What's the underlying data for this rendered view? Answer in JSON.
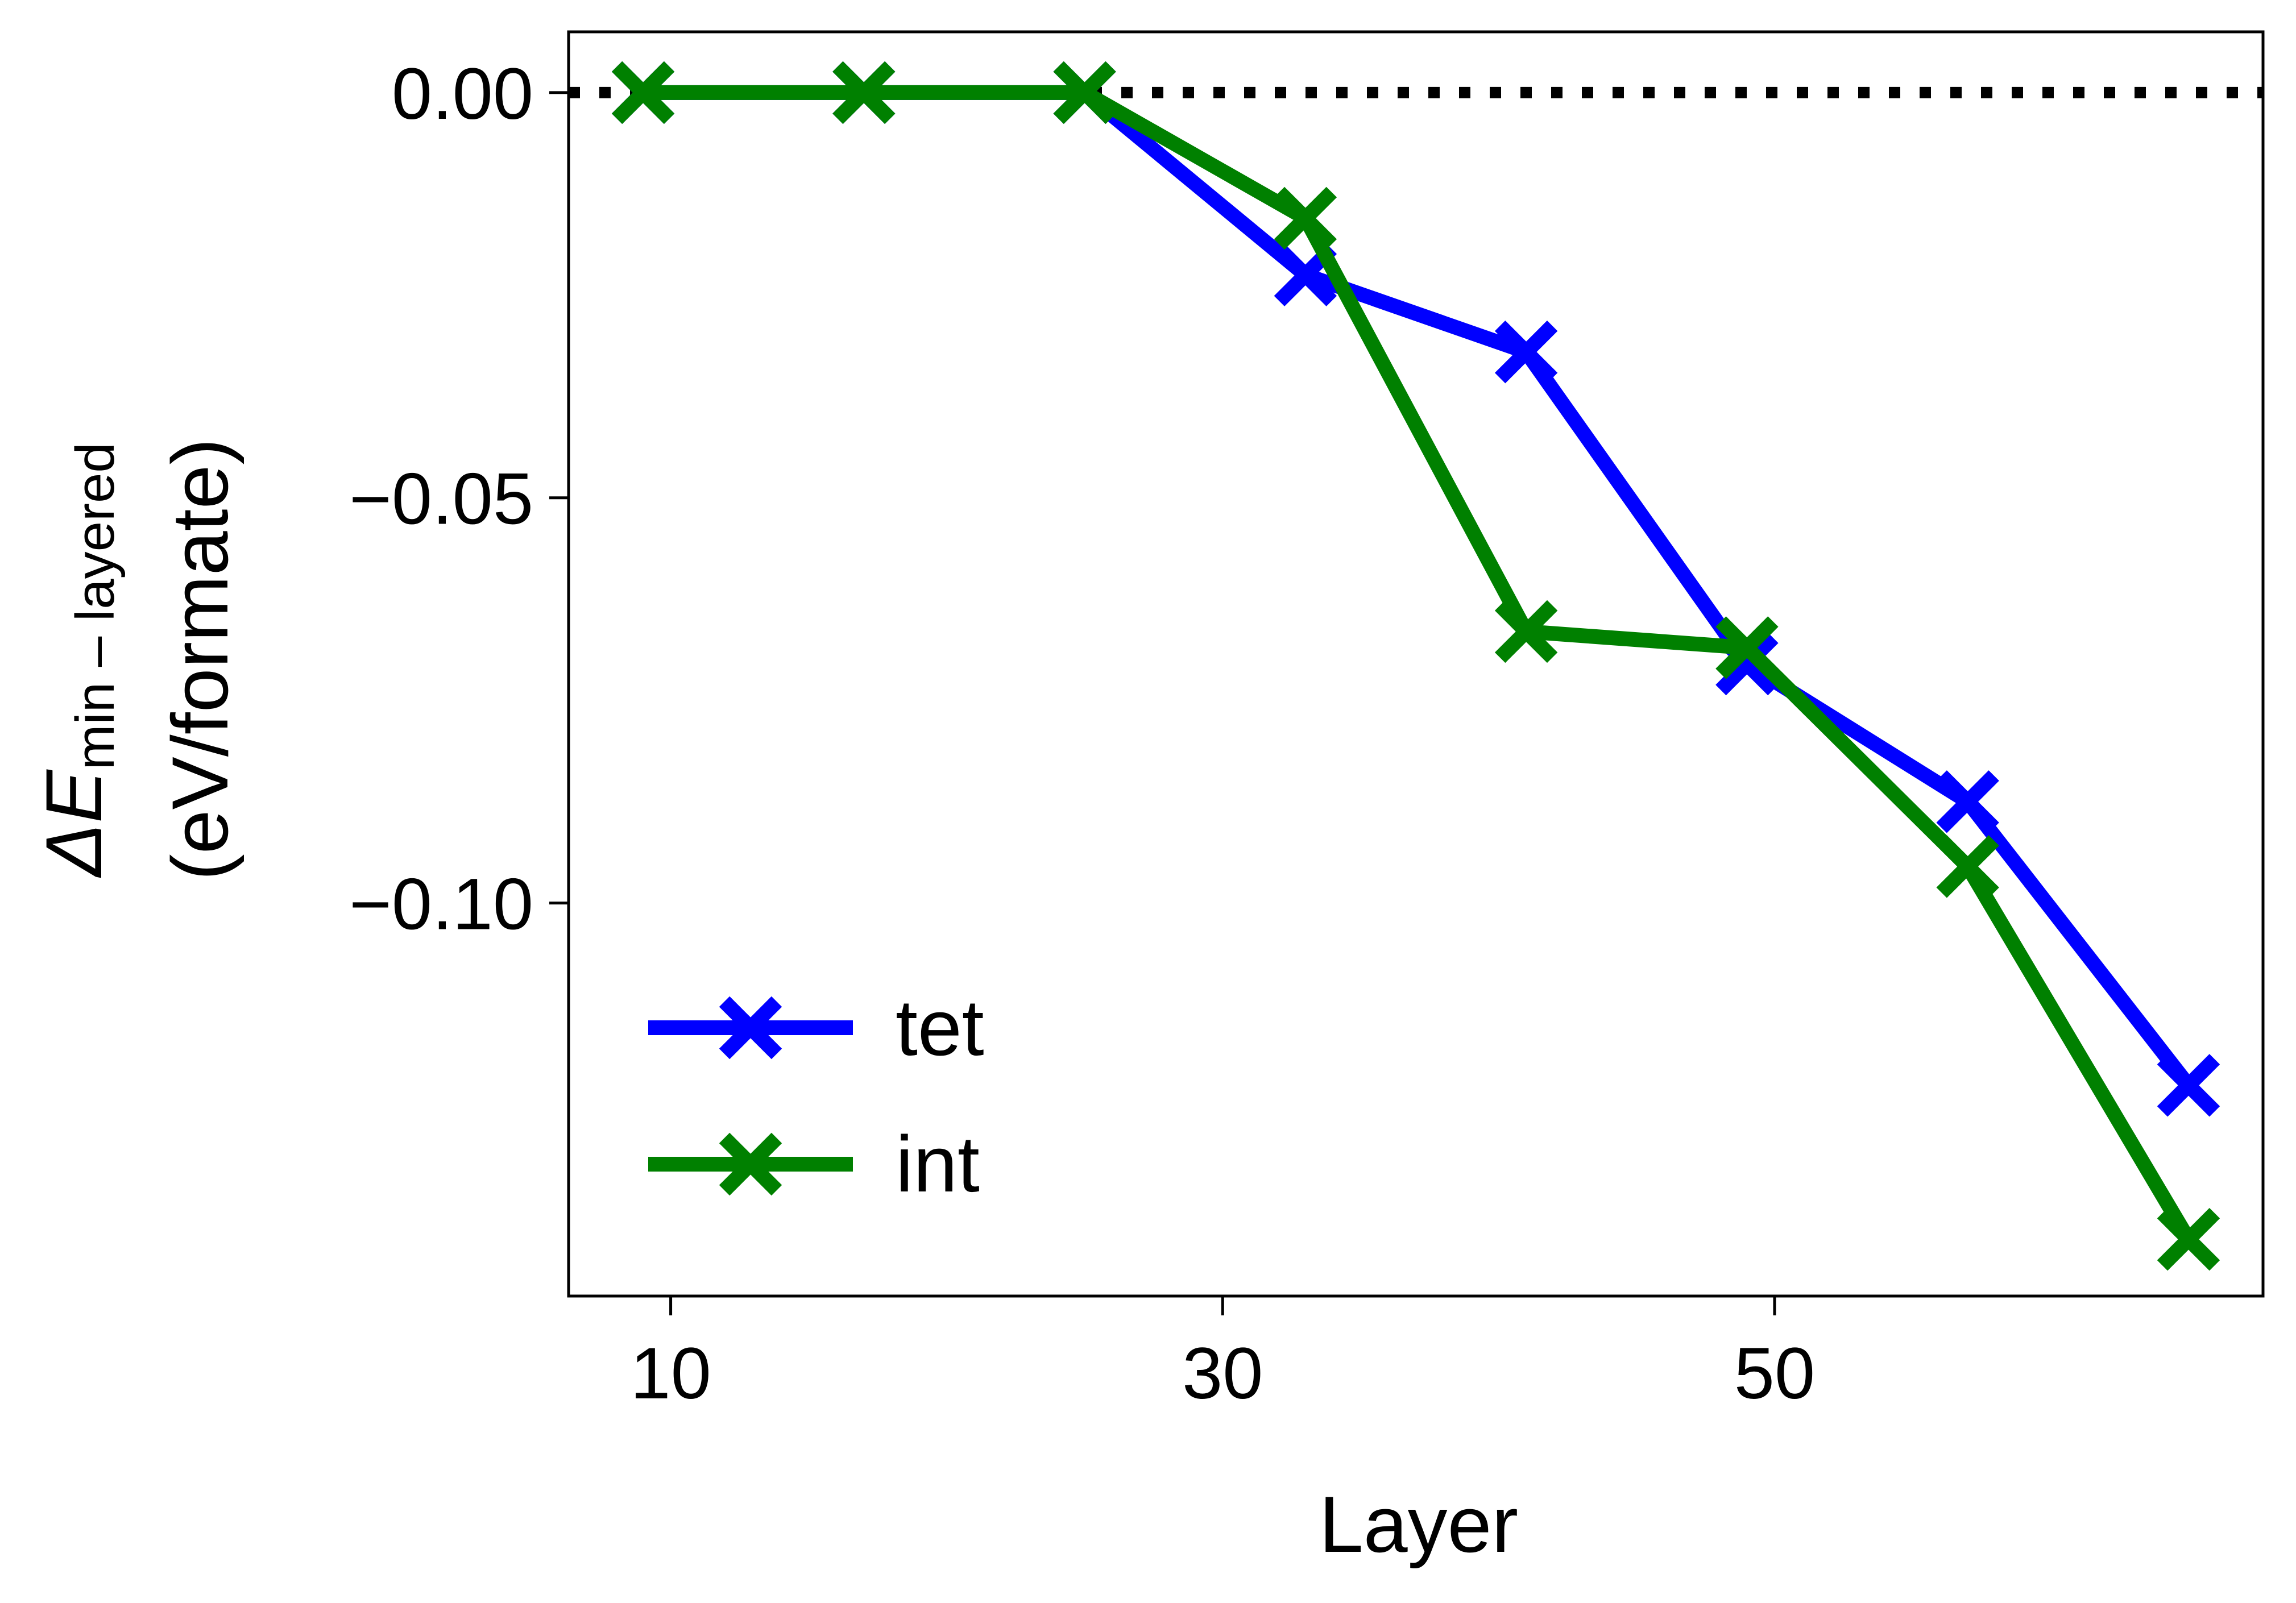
{
  "chart_data": {
    "type": "line",
    "xlabel": "Layer",
    "ylabel_prefix": "ΔE",
    "ylabel_subscript": "min – layered",
    "ylabel_units": "(eV/formate)",
    "xticks": [
      10,
      30,
      50
    ],
    "yticks": [
      0.0,
      -0.05,
      -0.1
    ],
    "ytick_labels": [
      "0.00",
      "−0.05",
      "−0.10"
    ],
    "xlim": [
      6.3,
      67.7
    ],
    "ylim": [
      -0.1485,
      0.0075
    ],
    "reference_line": {
      "y": 0.0,
      "style": "dotted",
      "color": "#000000"
    },
    "legend_position": "bottom-left",
    "series": [
      {
        "name": "tet",
        "color": "#0000ff",
        "marker": "x",
        "x": [
          9,
          17,
          25,
          33,
          41,
          49,
          57,
          65
        ],
        "y": [
          0.0,
          0.0,
          0.0,
          -0.0225,
          -0.032,
          -0.0705,
          -0.0875,
          -0.1225
        ]
      },
      {
        "name": "int",
        "color": "#008000",
        "marker": "x",
        "x": [
          9,
          17,
          25,
          33,
          41,
          49,
          57,
          65
        ],
        "y": [
          0.0,
          0.0,
          0.0,
          -0.0155,
          -0.0665,
          -0.0685,
          -0.0955,
          -0.1415
        ]
      }
    ]
  }
}
